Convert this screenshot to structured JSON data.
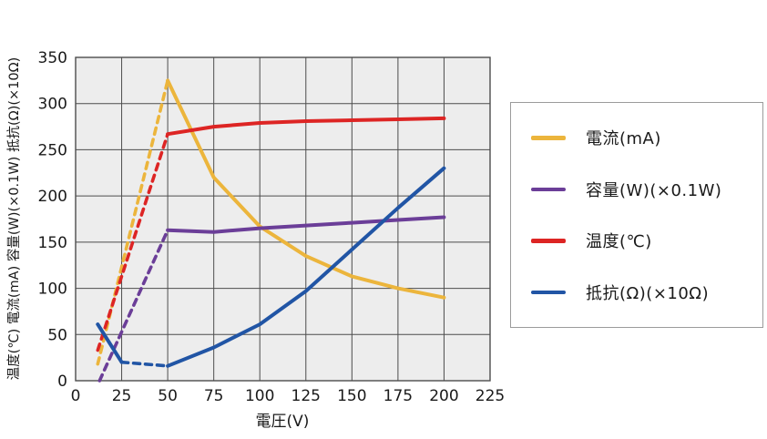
{
  "chart_data": {
    "type": "line",
    "title": "",
    "xlabel": "電圧(V)",
    "ylabel": "温度(℃) 電流(mA) 容量(W)(×0.1W) 抵抗(Ω)(×10Ω)",
    "xlim": [
      0,
      225
    ],
    "ylim": [
      0,
      350
    ],
    "xticks": [
      0,
      25,
      50,
      75,
      100,
      125,
      150,
      175,
      200,
      225
    ],
    "yticks": [
      0,
      50,
      100,
      150,
      200,
      250,
      300,
      350
    ],
    "grid": true,
    "legend_position": "right",
    "plot_bg_color": "#ededed",
    "grid_color": "#4d4d4d",
    "series": [
      {
        "name": "電流(mA)",
        "color": "#ecb53c",
        "segments": [
          {
            "style": "dashed",
            "points": [
              [
                12,
                18
              ],
              [
                50,
                325
              ]
            ]
          },
          {
            "style": "solid",
            "points": [
              [
                50,
                325
              ],
              [
                75,
                220
              ],
              [
                100,
                167
              ],
              [
                125,
                135
              ],
              [
                150,
                113
              ],
              [
                175,
                100
              ],
              [
                200,
                90
              ]
            ]
          }
        ]
      },
      {
        "name": "容量(W)(×0.1W)",
        "color": "#6b3e98",
        "segments": [
          {
            "style": "dashed",
            "points": [
              [
                13,
                0
              ],
              [
                50,
                163
              ]
            ]
          },
          {
            "style": "solid",
            "points": [
              [
                50,
                163
              ],
              [
                75,
                161
              ],
              [
                100,
                165
              ],
              [
                125,
                168
              ],
              [
                150,
                171
              ],
              [
                175,
                174
              ],
              [
                200,
                177
              ]
            ]
          }
        ]
      },
      {
        "name": "温度(℃)",
        "color": "#dd2524",
        "segments": [
          {
            "style": "dashed",
            "points": [
              [
                12,
                33
              ],
              [
                50,
                267
              ]
            ]
          },
          {
            "style": "solid",
            "points": [
              [
                50,
                267
              ],
              [
                75,
                275
              ],
              [
                100,
                279
              ],
              [
                125,
                281
              ],
              [
                150,
                282
              ],
              [
                175,
                283
              ],
              [
                200,
                284
              ]
            ]
          }
        ]
      },
      {
        "name": "抵抗(Ω)(×10Ω)",
        "color": "#2155a5",
        "segments": [
          {
            "style": "solid",
            "points": [
              [
                12,
                61
              ],
              [
                25,
                20
              ]
            ]
          },
          {
            "style": "dashed",
            "points": [
              [
                25,
                20
              ],
              [
                50,
                16
              ]
            ]
          },
          {
            "style": "solid",
            "points": [
              [
                50,
                16
              ],
              [
                75,
                36
              ],
              [
                100,
                61
              ],
              [
                125,
                97
              ],
              [
                150,
                142
              ],
              [
                175,
                187
              ],
              [
                200,
                230
              ]
            ]
          }
        ]
      }
    ]
  }
}
